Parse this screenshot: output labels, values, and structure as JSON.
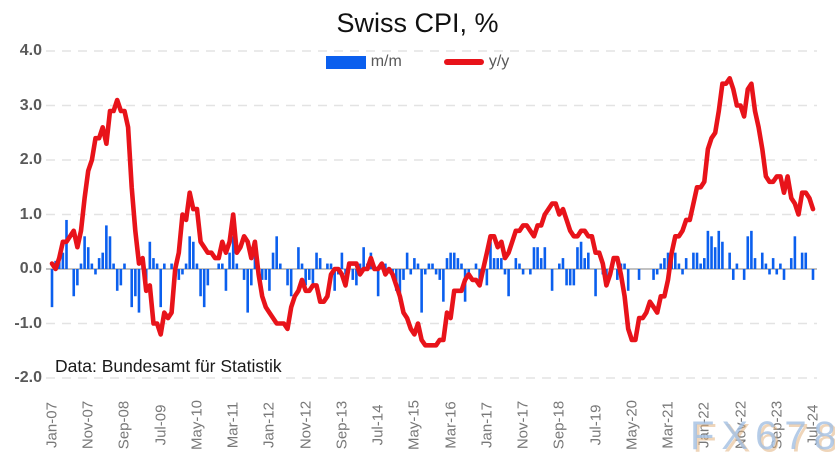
{
  "title": "Swiss CPI, %",
  "legend": {
    "mm_label": "m/m",
    "yy_label": "y/y"
  },
  "source_note": "Data: Bundesamt für Statistik",
  "watermark": "FX678",
  "colors": {
    "mm_bar": "#0b5fee",
    "yy_line": "#e8131a",
    "gridline": "#e3e3e3",
    "zero_line": "#c2c2c2",
    "y_tick_text": "#595959",
    "x_tick_text": "#787878",
    "title_text": "#111111",
    "legend_text": "#595959"
  },
  "chart_data": {
    "type": "bar+line",
    "title": "Swiss CPI, %",
    "xlabel": "",
    "ylabel": "",
    "ylim": [
      -2.0,
      4.0
    ],
    "grid": "dashed horizontal",
    "legend_position": "top-center",
    "x_start": "Jan-2007",
    "x_end": "Jul-2024",
    "x_frequency": "monthly",
    "x_tick_labels": [
      "Jan-07",
      "Nov-07",
      "Sep-08",
      "Jul-09",
      "May-10",
      "Mar-11",
      "Jan-12",
      "Nov-12",
      "Sep-13",
      "Jul-14",
      "May-15",
      "Mar-16",
      "Jan-17",
      "Nov-17",
      "Sep-18",
      "Jul-19",
      "May-20",
      "Mar-21",
      "Jan-22",
      "Nov-22",
      "Sep-23",
      "Jul-24"
    ],
    "x_tick_month_indices": [
      0,
      10,
      20,
      30,
      40,
      50,
      60,
      70,
      80,
      90,
      100,
      110,
      120,
      130,
      140,
      150,
      160,
      170,
      180,
      190,
      200,
      210
    ],
    "y_ticks": [
      4.0,
      3.0,
      2.0,
      1.0,
      0.0,
      -1.0,
      -2.0
    ],
    "y_tick_labels": [
      "4.0",
      "3.0",
      "2.0",
      "1.0",
      "0.0",
      "-1.0",
      "-2.0"
    ],
    "series": [
      {
        "name": "m/m",
        "type": "bar",
        "color": "#0b5fee",
        "values": [
          -0.7,
          0.15,
          0.2,
          0.3,
          0.9,
          0.0,
          -0.5,
          -0.3,
          0.1,
          0.6,
          0.4,
          0.1,
          -0.1,
          0.2,
          0.3,
          0.8,
          0.6,
          0.1,
          -0.4,
          -0.3,
          0.1,
          0.0,
          -0.7,
          -0.5,
          -0.8,
          0.2,
          -0.3,
          0.5,
          0.2,
          0.1,
          -0.7,
          0.1,
          0.0,
          0.1,
          0.1,
          -0.2,
          -0.1,
          0.1,
          0.6,
          0.5,
          0.1,
          -0.5,
          -0.7,
          -0.3,
          0.0,
          0.0,
          0.1,
          0.1,
          -0.4,
          0.3,
          0.6,
          0.1,
          0.0,
          -0.2,
          -0.8,
          -0.3,
          0.3,
          -0.1,
          -0.2,
          -0.2,
          -0.4,
          0.3,
          0.6,
          0.1,
          0.0,
          -0.3,
          -0.5,
          0.0,
          0.4,
          0.1,
          -0.3,
          -0.2,
          -0.3,
          0.3,
          0.2,
          0.0,
          0.1,
          0.1,
          -0.4,
          -0.1,
          0.3,
          -0.1,
          0.0,
          -0.2,
          -0.3,
          0.1,
          0.4,
          0.1,
          0.3,
          0.0,
          -0.5,
          0.0,
          0.1,
          0.0,
          -0.1,
          -0.4,
          -0.6,
          -0.2,
          0.3,
          -0.1,
          0.2,
          0.1,
          -0.8,
          -0.1,
          0.1,
          0.1,
          -0.1,
          -0.2,
          -0.6,
          0.2,
          0.3,
          0.3,
          0.2,
          0.1,
          -0.6,
          -0.1,
          0.0,
          0.1,
          -0.2,
          0.0,
          -0.3,
          0.5,
          0.2,
          0.2,
          0.2,
          -0.1,
          -0.5,
          0.0,
          0.2,
          0.1,
          -0.1,
          0.0,
          -0.1,
          0.4,
          0.4,
          0.2,
          0.4,
          0.0,
          -0.4,
          0.0,
          0.1,
          0.2,
          -0.3,
          -0.3,
          -0.3,
          0.4,
          0.5,
          0.2,
          0.3,
          0.0,
          -0.5,
          0.0,
          -0.1,
          -0.2,
          0.0,
          0.0,
          -0.2,
          0.1,
          0.1,
          -0.4,
          0.0,
          0.0,
          -0.2,
          0.0,
          0.0,
          0.0,
          -0.2,
          -0.1,
          0.1,
          0.2,
          0.3,
          0.2,
          0.3,
          0.1,
          -0.1,
          0.2,
          0.0,
          0.3,
          0.3,
          0.1,
          0.2,
          0.7,
          0.6,
          0.4,
          0.7,
          0.5,
          0.0,
          0.3,
          -0.2,
          0.1,
          0.0,
          -0.2,
          0.6,
          0.7,
          0.2,
          0.0,
          0.3,
          0.1,
          -0.1,
          0.2,
          -0.1,
          0.1,
          -0.2,
          0.0,
          0.2,
          0.6,
          0.0,
          0.3,
          0.3,
          0.0,
          -0.2
        ]
      },
      {
        "name": "y/y",
        "type": "line",
        "color": "#e8131a",
        "values": [
          0.1,
          0.0,
          0.2,
          0.5,
          0.5,
          0.6,
          0.7,
          0.4,
          0.7,
          1.3,
          1.8,
          2.0,
          2.4,
          2.4,
          2.6,
          2.3,
          2.9,
          2.9,
          3.1,
          2.9,
          2.9,
          2.6,
          1.5,
          0.7,
          0.1,
          0.2,
          -0.4,
          -0.3,
          -1.0,
          -1.0,
          -1.2,
          -0.8,
          -0.9,
          -0.8,
          0.0,
          0.3,
          1.0,
          0.9,
          1.4,
          1.1,
          1.1,
          0.5,
          0.4,
          0.3,
          0.3,
          0.2,
          0.2,
          0.5,
          0.3,
          0.5,
          1.0,
          0.3,
          0.4,
          0.6,
          0.5,
          0.2,
          0.5,
          -0.1,
          -0.5,
          -0.7,
          -0.8,
          -0.9,
          -1.0,
          -1.0,
          -1.0,
          -1.1,
          -0.7,
          -0.5,
          -0.4,
          -0.2,
          -0.4,
          -0.4,
          -0.3,
          -0.3,
          -0.6,
          -0.6,
          -0.5,
          -0.1,
          0.0,
          0.0,
          -0.1,
          -0.3,
          0.1,
          0.1,
          0.1,
          -0.1,
          0.0,
          0.0,
          0.2,
          0.0,
          0.0,
          0.1,
          -0.1,
          0.0,
          -0.1,
          -0.3,
          -0.5,
          -0.8,
          -0.9,
          -1.1,
          -1.2,
          -1.0,
          -1.3,
          -1.4,
          -1.4,
          -1.4,
          -1.4,
          -1.3,
          -1.3,
          -0.8,
          -0.9,
          -0.4,
          -0.4,
          -0.4,
          -0.2,
          -0.1,
          -0.2,
          -0.2,
          -0.3,
          0.0,
          0.3,
          0.6,
          0.6,
          0.4,
          0.5,
          0.2,
          0.3,
          0.5,
          0.7,
          0.7,
          0.8,
          0.8,
          0.7,
          0.6,
          0.8,
          0.8,
          1.0,
          1.1,
          1.2,
          1.2,
          1.0,
          1.1,
          0.9,
          0.7,
          0.6,
          0.6,
          0.7,
          0.7,
          0.6,
          0.6,
          0.3,
          0.3,
          0.1,
          -0.3,
          -0.1,
          0.2,
          0.2,
          -0.1,
          -0.5,
          -1.1,
          -1.3,
          -1.3,
          -0.9,
          -0.9,
          -0.8,
          -0.6,
          -0.7,
          -0.8,
          -0.5,
          -0.5,
          -0.2,
          0.3,
          0.6,
          0.6,
          0.7,
          0.9,
          0.9,
          1.2,
          1.5,
          1.5,
          1.6,
          2.2,
          2.4,
          2.5,
          2.9,
          3.4,
          3.4,
          3.5,
          3.3,
          3.0,
          3.0,
          2.8,
          3.3,
          3.4,
          2.9,
          2.6,
          2.2,
          1.7,
          1.6,
          1.6,
          1.7,
          1.7,
          1.4,
          1.7,
          1.3,
          1.2,
          1.0,
          1.4,
          1.4,
          1.3,
          1.1
        ]
      }
    ]
  }
}
